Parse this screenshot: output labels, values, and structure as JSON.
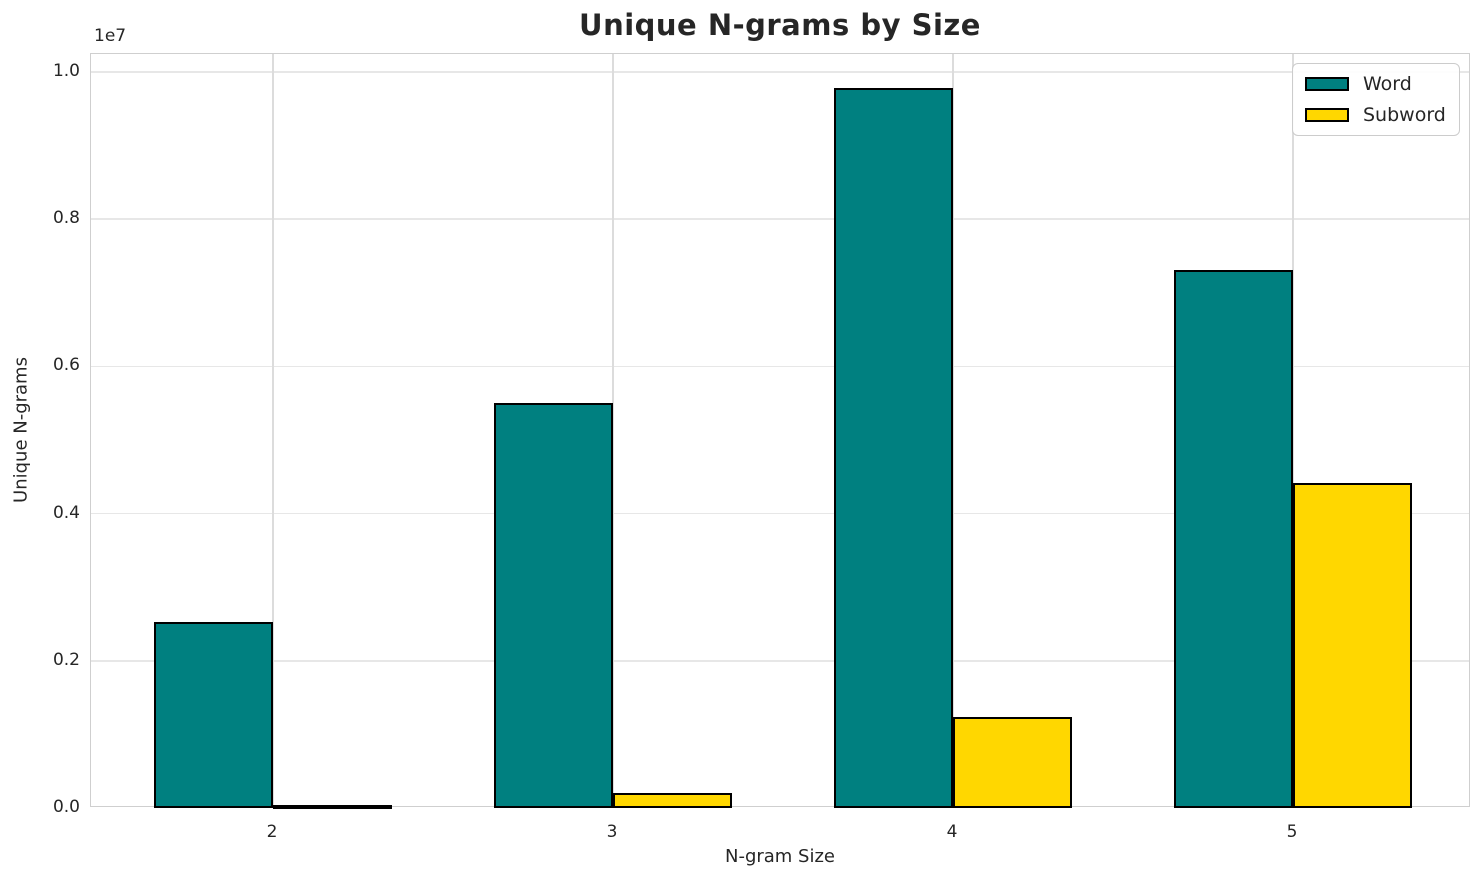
{
  "chart_data": {
    "type": "bar",
    "title": "Unique N-grams by Size",
    "xlabel": "N-gram Size",
    "ylabel": "Unique N-grams",
    "y_offset_label": "1e7",
    "categories": [
      "2",
      "3",
      "4",
      "5"
    ],
    "series": [
      {
        "name": "Word",
        "color": "#008080",
        "values": [
          2530000,
          5500000,
          9780000,
          7310000
        ]
      },
      {
        "name": "Subword",
        "color": "#FFD700",
        "values": [
          35000,
          200000,
          1230000,
          4420000
        ]
      }
    ],
    "ylim": [
      0,
      10250000
    ],
    "yticks": [
      0,
      2000000,
      4000000,
      6000000,
      8000000,
      10000000
    ],
    "ytick_labels": [
      "0.0",
      "0.2",
      "0.4",
      "0.6",
      "0.8",
      "1.0"
    ],
    "grid": true,
    "legend": {
      "position": "upper right",
      "entries": [
        "Word",
        "Subword"
      ]
    },
    "bar_edge_color": "#000000",
    "bar_width_fraction": 0.35
  },
  "colors": {
    "background": "#ffffff",
    "text": "#262626",
    "grid_horizontal": "#e7e7e7",
    "grid_vertical": "#dcdcdc",
    "spine": "#cfcfcf",
    "word": "#008080",
    "subword": "#FFD700"
  }
}
